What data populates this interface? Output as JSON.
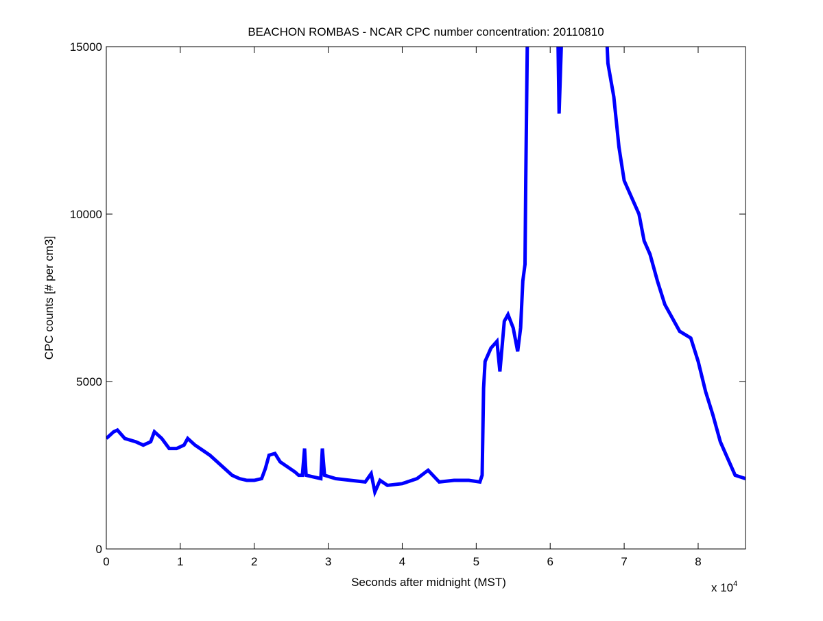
{
  "chart_data": {
    "type": "line",
    "title": "BEACHON ROMBAS - NCAR CPC number concentration: 20110810",
    "xlabel": "Seconds after midnight (MST)",
    "ylabel": "CPC counts [# per cm3]",
    "x_multiplier_label": "x 10",
    "x_multiplier_exponent": "4",
    "xlim": [
      0,
      86400
    ],
    "ylim": [
      0,
      15000
    ],
    "grid": false,
    "line_color": "#0000ff",
    "xticks": [
      0,
      10000,
      20000,
      30000,
      40000,
      50000,
      60000,
      70000,
      80000
    ],
    "xtick_labels": [
      "0",
      "1",
      "2",
      "3",
      "4",
      "5",
      "6",
      "7",
      "8"
    ],
    "yticks": [
      0,
      5000,
      10000,
      15000
    ],
    "ytick_labels": [
      "0",
      "5000",
      "10000",
      "15000"
    ],
    "series": [
      {
        "x": [
          0,
          1000,
          1500,
          2500,
          4000,
          5000,
          6000,
          6500,
          7500,
          8500,
          9500,
          10500,
          11000,
          12000,
          13000,
          14000,
          15000,
          16000,
          17000,
          18000,
          19000,
          20000,
          21000,
          21500,
          22000,
          22800,
          23500,
          24500,
          25500,
          26000,
          26500,
          26800,
          27000,
          28000,
          29000,
          29200,
          29500,
          31000,
          33000,
          35000,
          35800,
          36300,
          37000,
          38000,
          40000,
          42000,
          43500,
          45000,
          47000,
          49000,
          50500,
          50800,
          51000,
          51200,
          52000,
          52800,
          53200,
          53800,
          54300,
          55000,
          55600,
          56000,
          56300,
          56600,
          56700,
          56900,
          57000,
          60000,
          61000,
          61200,
          61500,
          62000,
          67500,
          67800,
          68600,
          69300,
          70000,
          71000,
          72000,
          72700,
          73500,
          74500,
          75500,
          76500,
          77500,
          79000,
          80000,
          81000,
          82000,
          83000,
          84000,
          85000,
          86400
        ],
        "y": [
          3300,
          3500,
          3550,
          3300,
          3200,
          3100,
          3200,
          3500,
          3300,
          3000,
          3000,
          3100,
          3300,
          3100,
          2950,
          2800,
          2600,
          2400,
          2200,
          2100,
          2050,
          2050,
          2100,
          2400,
          2800,
          2850,
          2600,
          2450,
          2300,
          2200,
          2200,
          3000,
          2200,
          2150,
          2100,
          3000,
          2200,
          2100,
          2050,
          2000,
          2250,
          1700,
          2050,
          1900,
          1950,
          2100,
          2350,
          2000,
          2050,
          2050,
          2000,
          2200,
          4800,
          5600,
          6000,
          6200,
          5300,
          6800,
          7000,
          6600,
          5900,
          6600,
          8000,
          8500,
          11000,
          15000,
          16000,
          17000,
          16000,
          13000,
          15000,
          16000,
          16000,
          14500,
          13500,
          12000,
          11000,
          10500,
          10000,
          9200,
          8800,
          8000,
          7300,
          6900,
          6500,
          6300,
          5600,
          4700,
          4000,
          3200,
          2700,
          2200,
          2100
        ]
      }
    ]
  }
}
